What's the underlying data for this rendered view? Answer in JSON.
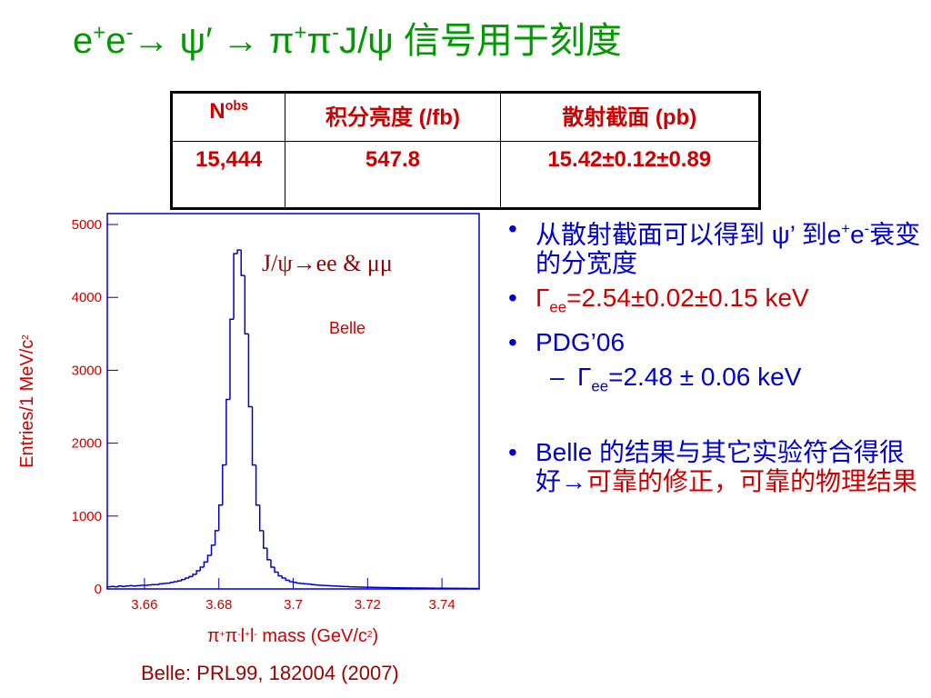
{
  "title": [
    {
      "text": "e"
    },
    {
      "text": "+",
      "sup": true
    },
    {
      "text": "e"
    },
    {
      "text": "-",
      "sup": true
    },
    {
      "text": "→ ψ′ → π"
    },
    {
      "text": "+",
      "sup": true
    },
    {
      "text": "π"
    },
    {
      "text": "-",
      "sup": true
    },
    {
      "text": "J/ψ 信号用于刻度"
    }
  ],
  "table": {
    "header": [
      [
        {
          "text": "N"
        },
        {
          "text": "obs",
          "sup": true
        }
      ],
      [
        {
          "text": "积分亮度 (/fb)"
        }
      ],
      [
        {
          "text": "散射截面 (pb)"
        }
      ]
    ],
    "rows": [
      [
        "15,444",
        "547.8",
        "15.42±0.12±0.89"
      ]
    ]
  },
  "bullets": [
    {
      "segments": [
        {
          "text": "从散射截面可以得到 ψ’ 到e",
          "color": "#0000cc"
        },
        {
          "text": "+",
          "sup": true,
          "color": "#0000cc"
        },
        {
          "text": "e",
          "color": "#0000cc"
        },
        {
          "text": "-",
          "sup": true,
          "color": "#0000cc"
        },
        {
          "text": "衰变的分宽度",
          "color": "#0000cc"
        }
      ]
    },
    {
      "segments": [
        {
          "text": "Γ",
          "color": "#cc0000"
        },
        {
          "text": "ee",
          "sub": true,
          "color": "#cc0000"
        },
        {
          "text": "=2.54±0.02±0.15 keV",
          "color": "#cc0000"
        }
      ]
    },
    {
      "segments": [
        {
          "text": "PDG’06",
          "color": "#0000cc"
        }
      ]
    },
    {
      "sub_item": true,
      "segments": [
        {
          "text": "Γ",
          "color": "#0000cc"
        },
        {
          "text": "ee",
          "sub": true,
          "color": "#0000cc"
        },
        {
          "text": "=2.48 ± 0.06 keV",
          "color": "#0000cc"
        }
      ]
    },
    {
      "segments": [
        {
          "text": "Belle 的结果与其它实验符合得很好→",
          "color": "#0000cc"
        },
        {
          "text": "可靠的修正，可靠的物理结果",
          "color": "#cc0000"
        }
      ]
    }
  ],
  "reference": "Belle:  PRL99, 182004 (2007)",
  "chart_data": {
    "type": "histogram",
    "color": "#0000cc",
    "annotations": [
      "J/ψ→ee & μμ",
      "Belle"
    ],
    "x_label": [
      {
        "text": "π"
      },
      {
        "text": "+",
        "sup": true
      },
      {
        "text": "π"
      },
      {
        "text": "-",
        "sup": true
      },
      {
        "text": "l"
      },
      {
        "text": "+",
        "sup": true
      },
      {
        "text": "l"
      },
      {
        "text": "-",
        "sup": true
      },
      {
        "text": " mass (GeV/c"
      },
      {
        "text": "2",
        "sup": true
      },
      {
        "text": ")"
      }
    ],
    "y_label": [
      {
        "text": "Entries/1 MeV/c"
      },
      {
        "text": "2",
        "sup": true
      }
    ],
    "bins": [
      3.65,
      3.651,
      3.652,
      3.653,
      3.654,
      3.655,
      3.656,
      3.657,
      3.658,
      3.659,
      3.66,
      3.661,
      3.662,
      3.663,
      3.664,
      3.665,
      3.666,
      3.667,
      3.668,
      3.669,
      3.67,
      3.671,
      3.672,
      3.673,
      3.674,
      3.675,
      3.676,
      3.677,
      3.678,
      3.679,
      3.68,
      3.681,
      3.682,
      3.683,
      3.684,
      3.685,
      3.686,
      3.687,
      3.688,
      3.689,
      3.69,
      3.691,
      3.692,
      3.693,
      3.694,
      3.695,
      3.696,
      3.697,
      3.698,
      3.699,
      3.7,
      3.701,
      3.702,
      3.703,
      3.704,
      3.705,
      3.706,
      3.707,
      3.708,
      3.709,
      3.71,
      3.711,
      3.712,
      3.713,
      3.714,
      3.715,
      3.716,
      3.717,
      3.718,
      3.719,
      3.72,
      3.721,
      3.722,
      3.723,
      3.724,
      3.725,
      3.726,
      3.727,
      3.728,
      3.729,
      3.73,
      3.731,
      3.732,
      3.733,
      3.734,
      3.735,
      3.736,
      3.737,
      3.738,
      3.739,
      3.74,
      3.741,
      3.742,
      3.743,
      3.744,
      3.745,
      3.746,
      3.747,
      3.748,
      3.749,
      3.75
    ],
    "values": [
      30,
      35,
      30,
      40,
      35,
      40,
      45,
      40,
      45,
      50,
      50,
      55,
      60,
      60,
      70,
      75,
      80,
      90,
      100,
      110,
      130,
      150,
      170,
      200,
      250,
      300,
      370,
      460,
      600,
      800,
      1150,
      1700,
      2600,
      3700,
      4600,
      4650,
      4300,
      3500,
      2500,
      1700,
      1150,
      800,
      560,
      400,
      300,
      230,
      180,
      150,
      120,
      100,
      90,
      80,
      75,
      70,
      65,
      60,
      55,
      50,
      48,
      45,
      42,
      40,
      38,
      35,
      33,
      30,
      28,
      27,
      25,
      24,
      23,
      22,
      21,
      20,
      19,
      18,
      17,
      16,
      15,
      15,
      14,
      14,
      13,
      13,
      12,
      12,
      11,
      11,
      10,
      10,
      10,
      9,
      9,
      9,
      8,
      8,
      8,
      7,
      7,
      7
    ],
    "xlim": [
      3.65,
      3.75
    ],
    "xticks": [
      3.66,
      3.68,
      3.7,
      3.72,
      3.74
    ],
    "ylim": [
      0,
      5150
    ],
    "yticks": [
      0,
      1000,
      2000,
      3000,
      4000,
      5000
    ]
  }
}
